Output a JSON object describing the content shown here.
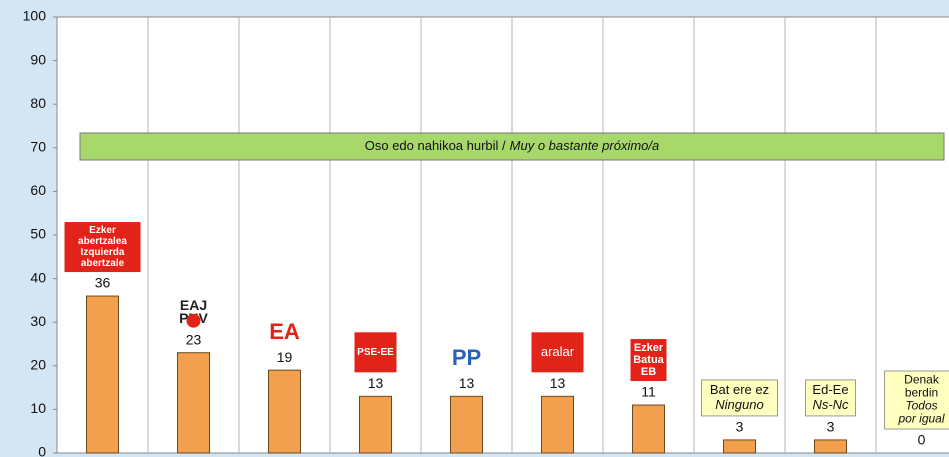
{
  "chart_data": {
    "type": "bar",
    "annotation": [
      "Oso edo nahikoa hurbil /",
      "Muy o bastante próximo/a"
    ],
    "categories": [
      [
        "Ezker",
        "abertzalea",
        "Izquierda",
        "abertzale"
      ],
      [
        "EAJ",
        "PNV"
      ],
      [
        "EA"
      ],
      [
        "PSE-EE"
      ],
      [
        "PP"
      ],
      [
        "aralar"
      ],
      [
        "Ezker",
        "Batua",
        "EB"
      ],
      [
        "Bat ere ez",
        "Ninguno"
      ],
      [
        "Ed-Ee",
        "Ns-Nc"
      ],
      [
        "Denak",
        "berdin",
        "Todos",
        "por igual"
      ]
    ],
    "values": [
      36,
      23,
      19,
      13,
      13,
      13,
      11,
      3,
      3,
      0
    ],
    "color": "#f2a04e",
    "ylim": [
      0,
      100
    ],
    "yticks": [
      0,
      10,
      20,
      30,
      40,
      50,
      60,
      70,
      80,
      90,
      100
    ],
    "grid": false
  }
}
